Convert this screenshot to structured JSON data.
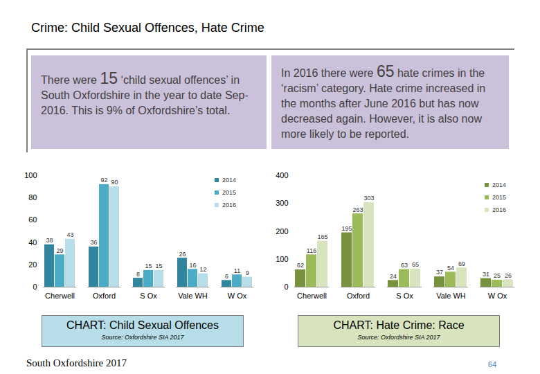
{
  "title": "Crime: Child Sexual Offences, Hate Crime",
  "text_boxes": [
    {
      "text_before": "There were ",
      "highlight": "15",
      "text_after": " ‘child sexual offences’ in South Oxfordshire in the year to date Sep-2016. This is 9% of Oxfordshire’s total."
    },
    {
      "text_before": "In 2016 there were ",
      "highlight": "65",
      "text_after": " hate crimes in the ‘racism’ category. Hate crime increased in the months after June 2016 but has now decreased again. However, it is also now more likely to be reported."
    }
  ],
  "chart_data": [
    {
      "type": "bar",
      "title": "CHART: Child Sexual Offences",
      "caption": "Source: Oxfordshire SIA 2017",
      "categories": [
        "Cherwell",
        "Oxford",
        "S Ox",
        "Vale WH",
        "W Ox"
      ],
      "series": [
        {
          "name": "2014",
          "color": "#31859c",
          "values": [
            38,
            36,
            8,
            26,
            6
          ]
        },
        {
          "name": "2015",
          "color": "#4bacc6",
          "values": [
            29,
            92,
            15,
            16,
            11
          ]
        },
        {
          "name": "2016",
          "color": "#b7dee8",
          "values": [
            43,
            90,
            15,
            12,
            9
          ]
        }
      ],
      "ylim": [
        0,
        100
      ],
      "yticks": [
        0,
        20,
        40,
        60,
        80,
        100
      ],
      "grid": false,
      "legend": "top-right",
      "data_labels": true
    },
    {
      "type": "bar",
      "title": "CHART: Hate Crime: Race",
      "caption": "Source: Oxfordshire SIA 2017",
      "categories": [
        "Cherwell",
        "Oxford",
        "S Ox",
        "Vale WH",
        "W Ox"
      ],
      "series": [
        {
          "name": "2014",
          "color": "#76923c",
          "values": [
            62,
            195,
            24,
            37,
            31
          ]
        },
        {
          "name": "2015",
          "color": "#9bbb59",
          "values": [
            116,
            263,
            63,
            54,
            25
          ]
        },
        {
          "name": "2016",
          "color": "#d7e4bd",
          "values": [
            165,
            303,
            65,
            69,
            26
          ]
        }
      ],
      "ylim": [
        0,
        400
      ],
      "yticks": [
        0,
        100,
        200,
        300,
        400
      ],
      "grid": false,
      "legend": "top-right",
      "data_labels": true
    }
  ],
  "footer": "South Oxfordshire 2017",
  "page_number": "64"
}
